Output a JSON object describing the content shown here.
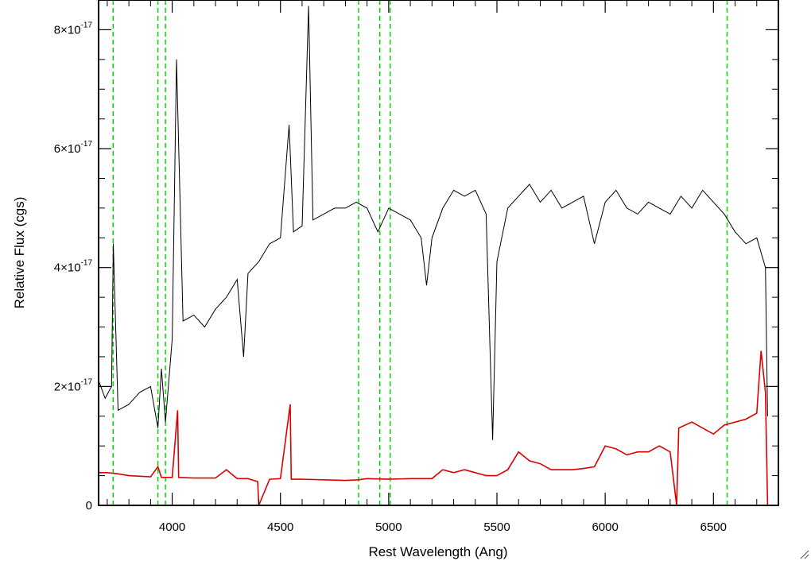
{
  "chart_data": {
    "type": "line",
    "title": "",
    "xlabel": "Rest Wavelength (Ang)",
    "ylabel": "Relative Flux (cgs)",
    "xlim": [
      3660,
      6800
    ],
    "ylim": [
      0,
      8.5e-17
    ],
    "x_ticks": [
      4000,
      4500,
      5000,
      5500,
      6000,
      6500
    ],
    "x_tick_labels": [
      "4000",
      "4500",
      "5000",
      "5500",
      "6000",
      "6500"
    ],
    "y_ticks": [
      0,
      2e-17,
      4e-17,
      6e-17,
      8e-17
    ],
    "y_tick_labels": [
      {
        "mantissa": "0",
        "exp": ""
      },
      {
        "mantissa": "2×10",
        "exp": "-17"
      },
      {
        "mantissa": "4×10",
        "exp": "-17"
      },
      {
        "mantissa": "6×10",
        "exp": "-17"
      },
      {
        "mantissa": "8×10",
        "exp": "-17"
      }
    ],
    "grid": false,
    "legend": "none",
    "reference_lines": {
      "color": "#00dd00",
      "style": "dashed",
      "x": [
        3727,
        3934,
        3969,
        4861,
        4959,
        5007,
        6563
      ]
    },
    "series": [
      {
        "color": "#000000",
        "x": [
          3660,
          3690,
          3720,
          3728,
          3750,
          3800,
          3850,
          3900,
          3934,
          3950,
          3969,
          4000,
          4020,
          4050,
          4100,
          4150,
          4200,
          4250,
          4300,
          4330,
          4350,
          4400,
          4450,
          4500,
          4540,
          4560,
          4600,
          4630,
          4650,
          4700,
          4750,
          4800,
          4850,
          4900,
          4950,
          5000,
          5050,
          5100,
          5150,
          5175,
          5200,
          5250,
          5300,
          5350,
          5400,
          5450,
          5480,
          5500,
          5550,
          5600,
          5650,
          5700,
          5750,
          5800,
          5850,
          5900,
          5950,
          6000,
          6050,
          6100,
          6150,
          6200,
          6250,
          6300,
          6350,
          6400,
          6450,
          6500,
          6550,
          6600,
          6650,
          6700,
          6740,
          6750
        ],
        "y": [
          2.1e-17,
          1.8e-17,
          2e-17,
          4.4e-17,
          1.6e-17,
          1.7e-17,
          1.9e-17,
          2e-17,
          1.3e-17,
          2.3e-17,
          1.4e-17,
          2.8e-17,
          7.5e-17,
          3.1e-17,
          3.2e-17,
          3e-17,
          3.3e-17,
          3.5e-17,
          3.8e-17,
          2.5e-17,
          3.9e-17,
          4.1e-17,
          4.4e-17,
          4.5e-17,
          6.4e-17,
          4.6e-17,
          4.7e-17,
          8.4e-17,
          4.8e-17,
          4.9e-17,
          5e-17,
          5e-17,
          5.1e-17,
          5e-17,
          4.6e-17,
          5e-17,
          4.9e-17,
          4.8e-17,
          4.5e-17,
          3.7e-17,
          4.5e-17,
          5e-17,
          5.3e-17,
          5.2e-17,
          5.3e-17,
          4.9e-17,
          1.1e-17,
          4.1e-17,
          5e-17,
          5.2e-17,
          5.4e-17,
          5.1e-17,
          5.3e-17,
          5e-17,
          5.1e-17,
          5.2e-17,
          4.4e-17,
          5.1e-17,
          5.3e-17,
          5e-17,
          4.9e-17,
          5.1e-17,
          5e-17,
          4.9e-17,
          5.2e-17,
          5e-17,
          5.3e-17,
          5.1e-17,
          4.9e-17,
          4.6e-17,
          4.4e-17,
          4.5e-17,
          4e-17,
          1.5e-17
        ]
      },
      {
        "color": "#dd0000",
        "x": [
          3660,
          3700,
          3750,
          3800,
          3900,
          3934,
          3950,
          4000,
          4025,
          4030,
          4100,
          4200,
          4250,
          4300,
          4350,
          4395,
          4400,
          4450,
          4500,
          4545,
          4550,
          4600,
          4700,
          4800,
          4861,
          4900,
          5000,
          5100,
          5200,
          5250,
          5300,
          5350,
          5400,
          5450,
          5500,
          5550,
          5600,
          5650,
          5700,
          5750,
          5800,
          5850,
          5900,
          5950,
          6000,
          6050,
          6100,
          6150,
          6200,
          6250,
          6300,
          6330,
          6340,
          6400,
          6450,
          6500,
          6550,
          6600,
          6650,
          6700,
          6720,
          6740,
          6750
        ],
        "y": [
          5.5e-18,
          5.5e-18,
          5.3e-18,
          5e-18,
          4.8e-18,
          6.5e-18,
          4.7e-18,
          4.7e-18,
          1.6e-17,
          4.7e-18,
          4.6e-18,
          4.6e-18,
          6e-18,
          4.5e-18,
          4.5e-18,
          4e-18,
          0.0,
          4.4e-18,
          4.5e-18,
          1.7e-17,
          4.4e-18,
          4.4e-18,
          4.3e-18,
          4.2e-18,
          4.3e-18,
          4.5e-18,
          4.4e-18,
          4.5e-18,
          4.5e-18,
          6e-18,
          5.5e-18,
          6e-18,
          5.5e-18,
          5e-18,
          5e-18,
          6e-18,
          9e-18,
          7.5e-18,
          7e-18,
          6e-18,
          6e-18,
          6e-18,
          6.2e-18,
          6.5e-18,
          1e-17,
          9.5e-18,
          8.5e-18,
          9e-18,
          9e-18,
          1e-17,
          9e-18,
          0.0,
          1.3e-17,
          1.4e-17,
          1.3e-17,
          1.2e-17,
          1.35e-17,
          1.4e-17,
          1.45e-17,
          1.55e-17,
          2.6e-17,
          1.9e-17,
          0.0
        ]
      }
    ]
  }
}
